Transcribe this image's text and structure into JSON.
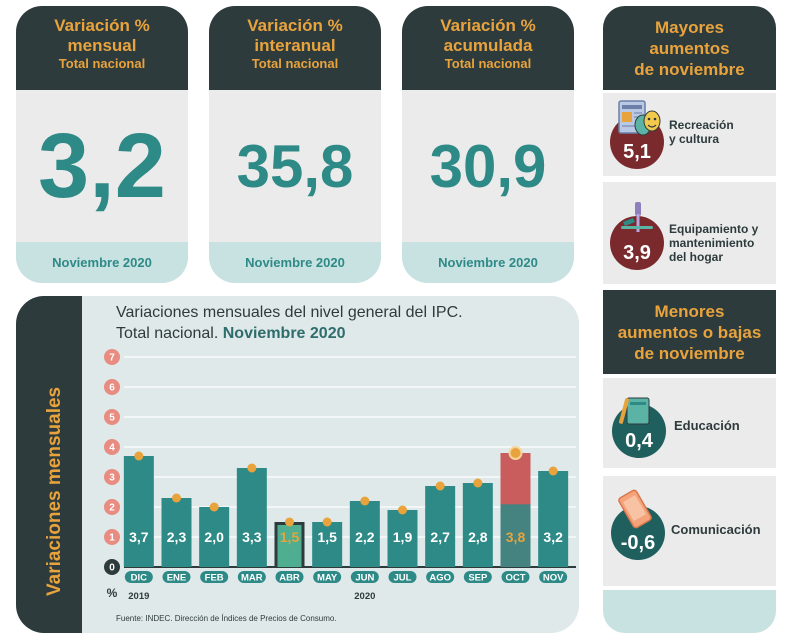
{
  "kpis": [
    {
      "title_1": "Variación %",
      "title_2": "mensual",
      "subtitle": "Total nacional",
      "value": "3,2",
      "footer": "Noviembre 2020"
    },
    {
      "title_1": "Variación %",
      "title_2": "interanual",
      "subtitle": "Total nacional",
      "value": "35,8",
      "footer": "Noviembre 2020"
    },
    {
      "title_1": "Variación %",
      "title_2": "acumulada",
      "subtitle": "Total nacional",
      "value": "30,9",
      "footer": "Noviembre 2020"
    }
  ],
  "mayores": {
    "header_lines": [
      "Mayores",
      "aumentos",
      "de noviembre"
    ],
    "items": [
      {
        "label_lines": [
          "Recreación",
          "y cultura"
        ],
        "value": "5,1",
        "icon": "theater-icon"
      },
      {
        "label_lines": [
          "Equipamiento y",
          "mantenimiento",
          "del hogar"
        ],
        "value": "3,9",
        "icon": "tools-icon"
      }
    ]
  },
  "menores": {
    "header_lines": [
      "Menores",
      "aumentos o bajas",
      "de noviembre"
    ],
    "items": [
      {
        "label_lines": [
          "Educación"
        ],
        "value": "0,4",
        "icon": "book-icon"
      },
      {
        "label_lines": [
          "Comunicación"
        ],
        "value": "-0,6",
        "icon": "phone-icon"
      }
    ]
  },
  "chart_data": {
    "type": "bar",
    "title_line1": "Variaciones mensuales del nivel general del IPC.",
    "title_line2_plain": "Total nacional.",
    "title_line2_bold": "Noviembre 2020",
    "ylabel": "Variaciones mensuales",
    "unit": "%",
    "categories": [
      "DIC",
      "ENE",
      "FEB",
      "MAR",
      "ABR",
      "MAY",
      "JUN",
      "JUL",
      "AGO",
      "SEP",
      "OCT",
      "NOV"
    ],
    "values": [
      3.7,
      2.3,
      2.0,
      3.3,
      1.5,
      1.5,
      2.2,
      1.9,
      2.7,
      2.8,
      3.8,
      3.2
    ],
    "value_labels": [
      "3,7",
      "2,3",
      "2,0",
      "3,3",
      "1,5",
      "1,5",
      "2,2",
      "1,9",
      "2,7",
      "2,8",
      "3,8",
      "3,2"
    ],
    "yticks": [
      0,
      1,
      2,
      3,
      4,
      5,
      6,
      7
    ],
    "ylim": [
      0,
      7
    ],
    "year_labels": [
      {
        "after_index": 0,
        "text": "2019"
      },
      {
        "after_index": 6,
        "text": "2020"
      }
    ],
    "source": "Fuente: INDEC. Dirección de Índices de Precios de Consumo.",
    "colors": {
      "bar": "#2e8a87",
      "marker": "#e8a33d",
      "tick_circle": "#e88b80"
    }
  }
}
